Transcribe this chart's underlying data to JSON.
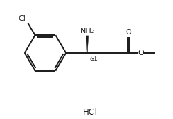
{
  "background_color": "#ffffff",
  "line_color": "#1a1a1a",
  "line_width": 1.4,
  "font_size_small": 6.5,
  "font_size_hcl": 8.5,
  "hcl_text": "HCl",
  "nh2_text": "NH₂",
  "cl_text": "Cl",
  "o_carbonyl": "O",
  "o_ester": "O",
  "and1_text": "&1",
  "figsize": [
    2.5,
    1.73
  ],
  "dpi": 100,
  "xlim": [
    0,
    10
  ],
  "ylim": [
    -1.2,
    6.0
  ]
}
